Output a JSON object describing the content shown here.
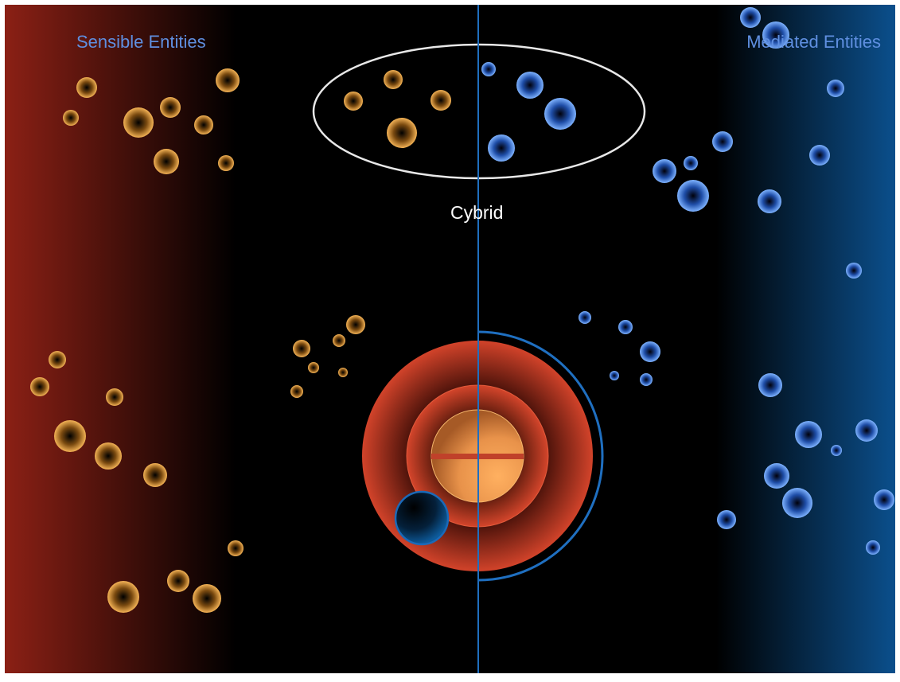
{
  "labels": {
    "left": "Sensible Entities",
    "right": "Mediated Entities",
    "center": "Cybrid"
  },
  "colors": {
    "background": "#000000",
    "left_gradient": "#8b2015",
    "right_gradient": "#0b4f8c",
    "orange_sphere": "#f2a94a",
    "blue_sphere": "#3f7fe0",
    "center_red": "#c2381f",
    "center_core": "#f5a24f",
    "divider_line": "#1f6fc0",
    "ellipse_stroke": "#e8e8e8",
    "left_label_color": "#5f8fe0",
    "right_label_color": "#5f8fe0",
    "center_label_color": "#ffffff"
  }
}
